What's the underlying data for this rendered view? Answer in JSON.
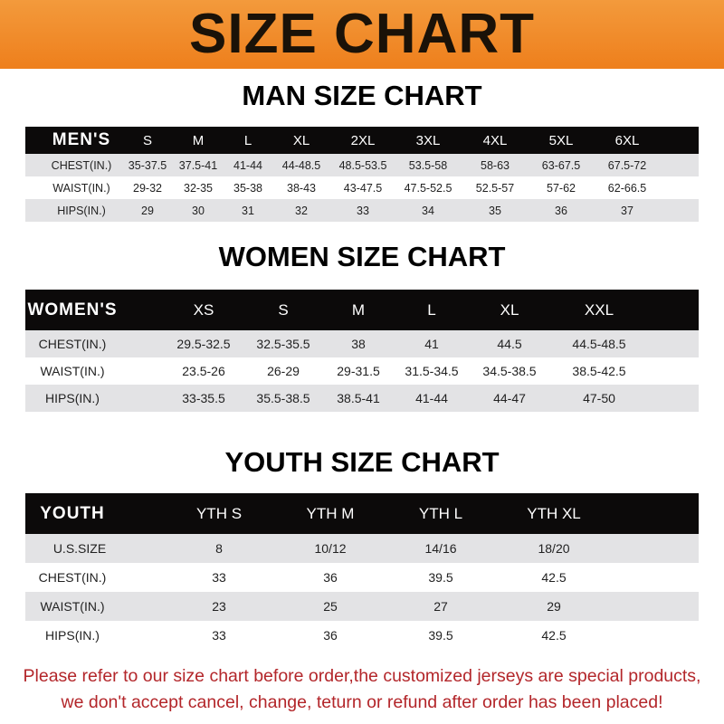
{
  "banner": {
    "title": "SIZE CHART",
    "color": "#ee7f1c"
  },
  "men": {
    "title": "MAN SIZE CHART",
    "header": [
      "MEN'S",
      "S",
      "M",
      "L",
      "XL",
      "2XL",
      "3XL",
      "4XL",
      "5XL",
      "6XL"
    ],
    "rows": [
      [
        "CHEST(IN.)",
        "35-37.5",
        "37.5-41",
        "41-44",
        "44-48.5",
        "48.5-53.5",
        "53.5-58",
        "58-63",
        "63-67.5",
        "67.5-72"
      ],
      [
        "WAIST(IN.)",
        "29-32",
        "32-35",
        "35-38",
        "38-43",
        "43-47.5",
        "47.5-52.5",
        "52.5-57",
        "57-62",
        "62-66.5"
      ],
      [
        "HIPS(IN.)",
        "29",
        "30",
        "31",
        "32",
        "33",
        "34",
        "35",
        "36",
        "37"
      ]
    ]
  },
  "women": {
    "title": "WOMEN SIZE CHART",
    "header": [
      "WOMEN'S",
      "XS",
      "S",
      "M",
      "L",
      "XL",
      "XXL"
    ],
    "rows": [
      [
        "CHEST(IN.)",
        "29.5-32.5",
        "32.5-35.5",
        "38",
        "41",
        "44.5",
        "44.5-48.5"
      ],
      [
        "WAIST(IN.)",
        "23.5-26",
        "26-29",
        "29-31.5",
        "31.5-34.5",
        "34.5-38.5",
        "38.5-42.5"
      ],
      [
        "HIPS(IN.)",
        "33-35.5",
        "35.5-38.5",
        "38.5-41",
        "41-44",
        "44-47",
        "47-50"
      ]
    ]
  },
  "youth": {
    "title": "YOUTH SIZE CHART",
    "header": [
      "YOUTH",
      "YTH S",
      "YTH M",
      "YTH L",
      "YTH XL"
    ],
    "rows": [
      [
        "U.S.SIZE",
        "8",
        "10/12",
        "14/16",
        "18/20"
      ],
      [
        "CHEST(IN.)",
        "33",
        "36",
        "39.5",
        "42.5"
      ],
      [
        "WAIST(IN.)",
        "23",
        "25",
        "27",
        "29"
      ],
      [
        "HIPS(IN.)",
        "33",
        "36",
        "39.5",
        "42.5"
      ]
    ]
  },
  "footer": {
    "line1": "Please refer to our size chart before order,the customized jerseys are special products,",
    "line2": "we don't accept cancel, change, teturn or refund after order has been placed!",
    "color": "#b3262a"
  }
}
